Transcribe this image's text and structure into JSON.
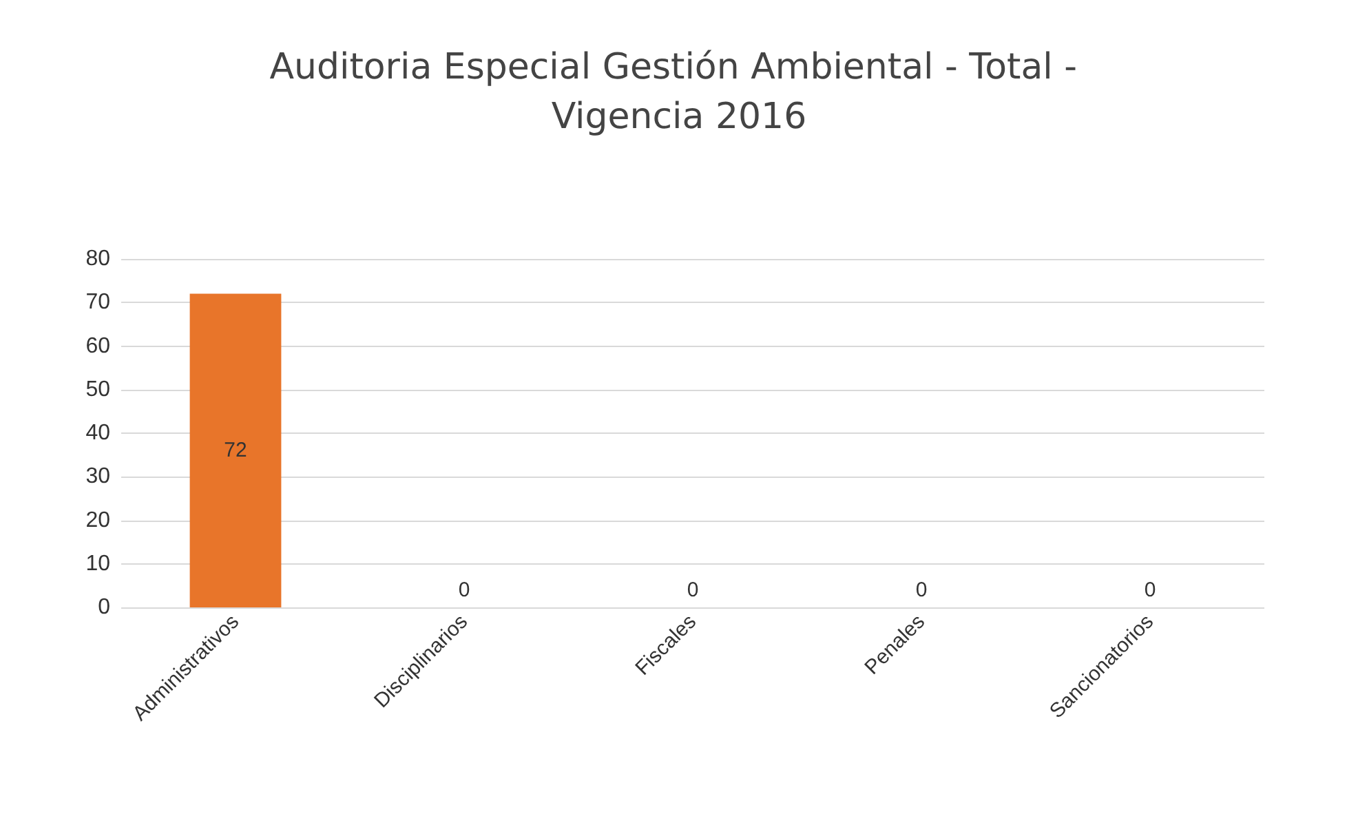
{
  "chart_data": {
    "type": "bar",
    "title": "Auditoria Especial Gestión Ambiental - Total - Vigencia 2016",
    "categories": [
      "Administrativos",
      "Disciplinarios",
      "Fiscales",
      "Penales",
      "Sancionatorios"
    ],
    "values": [
      72,
      0,
      0,
      0,
      0
    ],
    "color": "#e8752a",
    "ylim": [
      0,
      80
    ],
    "yticks": [
      0,
      10,
      20,
      30,
      40,
      50,
      60,
      70,
      80
    ],
    "grid": "y",
    "data_labels": true
  }
}
